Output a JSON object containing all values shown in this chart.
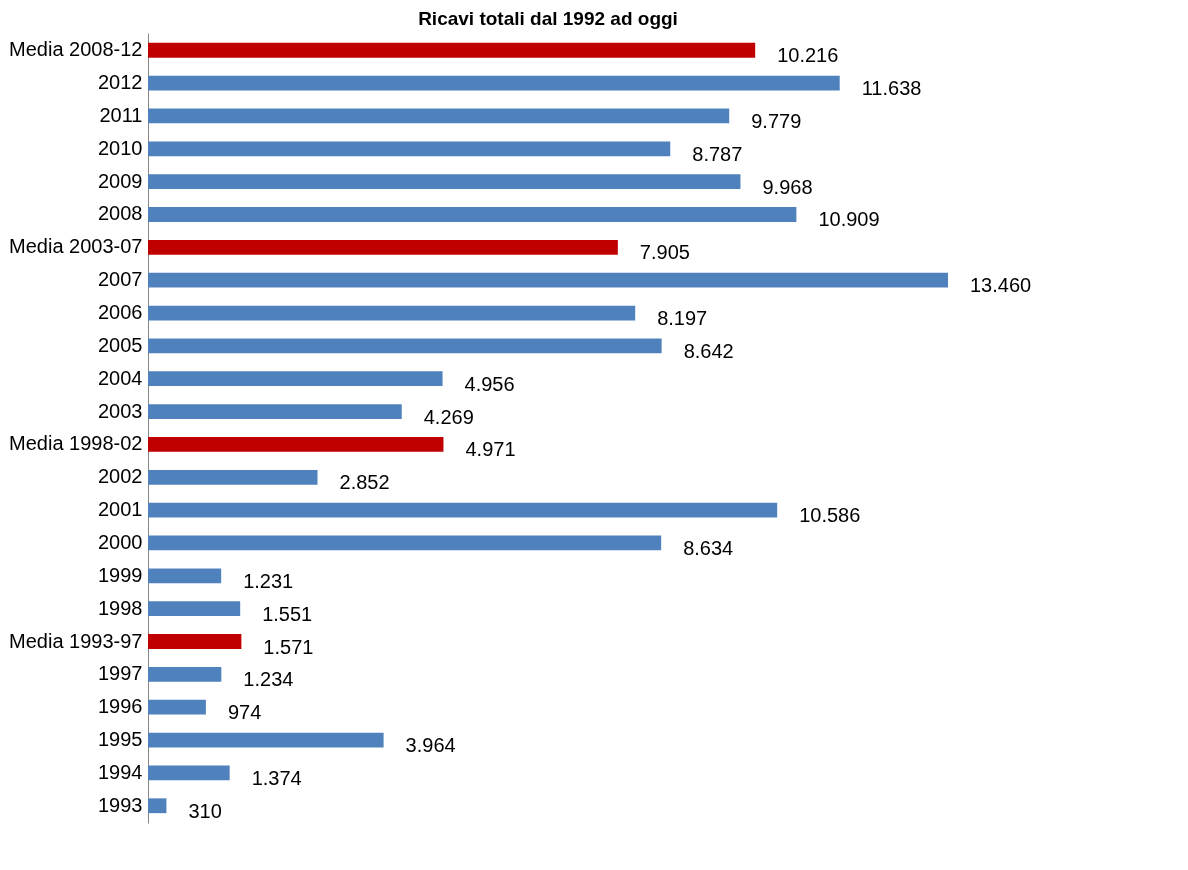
{
  "chart_data": {
    "type": "bar",
    "orientation": "horizontal",
    "title": "Ricavi totali dal 1992 ad oggi",
    "categories": [
      "Media 2008-12",
      "2012",
      "2011",
      "2010",
      "2009",
      "2008",
      "Media 2003-07",
      "2007",
      "2006",
      "2005",
      "2004",
      "2003",
      "Media 1998-02",
      "2002",
      "2001",
      "2000",
      "1999",
      "1998",
      "Media 1993-97",
      "1997",
      "1996",
      "1995",
      "1994",
      "1993"
    ],
    "values": [
      10216,
      11638,
      9779,
      8787,
      9968,
      10909,
      7905,
      13460,
      8197,
      8642,
      4956,
      4269,
      4971,
      2852,
      10586,
      8634,
      1231,
      1551,
      1571,
      1234,
      974,
      3964,
      1374,
      310
    ],
    "value_labels": [
      "10.216",
      "11.638",
      "9.779",
      "8.787",
      "9.968",
      "10.909",
      "7.905",
      "13.460",
      "8.197",
      "8.642",
      "4.956",
      "4.269",
      "4.971",
      "2.852",
      "10.586",
      "8.634",
      "1.231",
      "1.551",
      "1.571",
      "1.234",
      "974",
      "3.964",
      "1.374",
      "310"
    ],
    "colors": [
      "#c00000",
      "#4f81bd",
      "#4f81bd",
      "#4f81bd",
      "#4f81bd",
      "#4f81bd",
      "#c00000",
      "#4f81bd",
      "#4f81bd",
      "#4f81bd",
      "#4f81bd",
      "#4f81bd",
      "#c00000",
      "#4f81bd",
      "#4f81bd",
      "#4f81bd",
      "#4f81bd",
      "#4f81bd",
      "#c00000",
      "#4f81bd",
      "#4f81bd",
      "#4f81bd",
      "#4f81bd",
      "#4f81bd"
    ]
  }
}
